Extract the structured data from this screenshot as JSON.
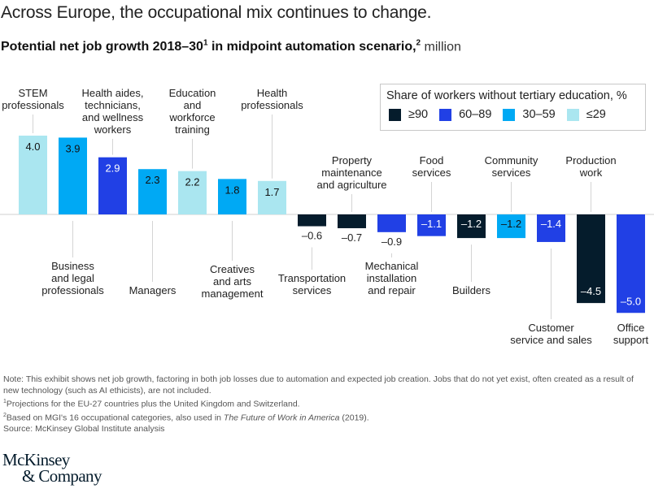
{
  "title": "Across Europe, the occupational mix continues to change.",
  "subtitle": {
    "main": "Potential net job growth 2018–30",
    "sup1": "1",
    "middle": " in midpoint automation scenario,",
    "sup2": "2",
    "unit": " million"
  },
  "legend": {
    "title": "Share of workers without tertiary education, %",
    "items": [
      {
        "label": "≥90",
        "color": "#051c2c"
      },
      {
        "label": "60–89",
        "color": "#2140e5"
      },
      {
        "label": "30–59",
        "color": "#00a9f4"
      },
      {
        "label": "≤29",
        "color": "#aae6f0"
      }
    ]
  },
  "chart_data": {
    "type": "bar",
    "title": "Potential net job growth 2018–30 in midpoint automation scenario, million",
    "categories": [
      [
        "STEM",
        "professionals"
      ],
      [
        "Business",
        "and legal",
        "professionals"
      ],
      [
        "Health aides,",
        "technicians,",
        "and wellness",
        "workers"
      ],
      [
        "Managers"
      ],
      [
        "Education",
        "and",
        "workforce",
        "training"
      ],
      [
        "Creatives",
        "and arts",
        "management"
      ],
      [
        "Health",
        "professionals"
      ],
      [
        "Transportation",
        "services"
      ],
      [
        "Property",
        "maintenance",
        "and agriculture"
      ],
      [
        "Mechanical",
        "installation",
        "and repair"
      ],
      [
        "Food",
        "services"
      ],
      [
        "Builders"
      ],
      [
        "Community",
        "services"
      ],
      [
        "Customer",
        "service and sales"
      ],
      [
        "Production",
        "work"
      ],
      [
        "Office",
        "support"
      ]
    ],
    "values": [
      4.0,
      3.9,
      2.9,
      2.3,
      2.2,
      1.8,
      1.7,
      -0.6,
      -0.7,
      -0.9,
      -1.1,
      -1.2,
      -1.2,
      -1.4,
      -4.5,
      -5.0
    ],
    "value_labels": [
      "4.0",
      "3.9",
      "2.9",
      "2.3",
      "2.2",
      "1.8",
      "1.7",
      "–0.6",
      "–0.7",
      "–0.9",
      "–1.1",
      "–1.2",
      "–1.2",
      "–1.4",
      "–4.5",
      "–5.0"
    ],
    "education_band": [
      "≤29",
      "30–59",
      "60–89",
      "30–59",
      "≤29",
      "30–59",
      "≤29",
      "≥90",
      "≥90",
      "60–89",
      "60–89",
      "≥90",
      "30–59",
      "60–89",
      "≥90",
      "60–89"
    ],
    "ylim": [
      -5.0,
      4.0
    ],
    "grid": false
  },
  "notes": {
    "note": "Note: This exhibit shows net job growth, factoring in both job losses due to automation and expected job creation. Jobs that do not yet exist, often created as a result of new technology (such as AI ethicists), are not included.",
    "fn1_mark": "1",
    "fn1": "Projections for the EU-27 countries plus the United Kingdom and Switzerland.",
    "fn2_mark": "2",
    "fn2_pre": "Based on MGI's 16 occupational categories, also used in ",
    "fn2_italic": "The Future of Work in America",
    "fn2_post": " (2019).",
    "source": "Source: McKinsey Global Institute analysis"
  },
  "logo": {
    "line1": "McKinsey",
    "line2": "& Company"
  }
}
